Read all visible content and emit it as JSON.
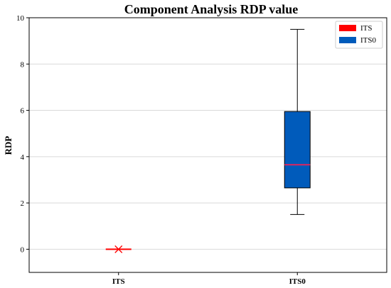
{
  "chart_data": {
    "type": "box",
    "title": "Component Analysis RDP value",
    "ylabel": "RDP",
    "xlabel": "",
    "ylim": [
      -1,
      10
    ],
    "yticks": [
      "0",
      "2",
      "4",
      "6",
      "8",
      "10"
    ],
    "ytick_values": [
      0,
      2,
      4,
      6,
      8,
      10
    ],
    "grid": "horizontal",
    "legend_position": "top-right",
    "categories": [
      "ITS",
      "ITS0"
    ],
    "series": [
      {
        "name": "ITS",
        "color": "#ff0000",
        "median_color": "#ff0000",
        "min": 0,
        "q1": 0,
        "median": 0,
        "q3": 0,
        "max": 0,
        "mean": 0
      },
      {
        "name": "ITS0",
        "color": "#005bbb",
        "median_color": "#e0245e",
        "min": 1.5,
        "q1": 2.65,
        "median": 3.65,
        "q3": 5.95,
        "max": 9.5
      }
    ]
  }
}
